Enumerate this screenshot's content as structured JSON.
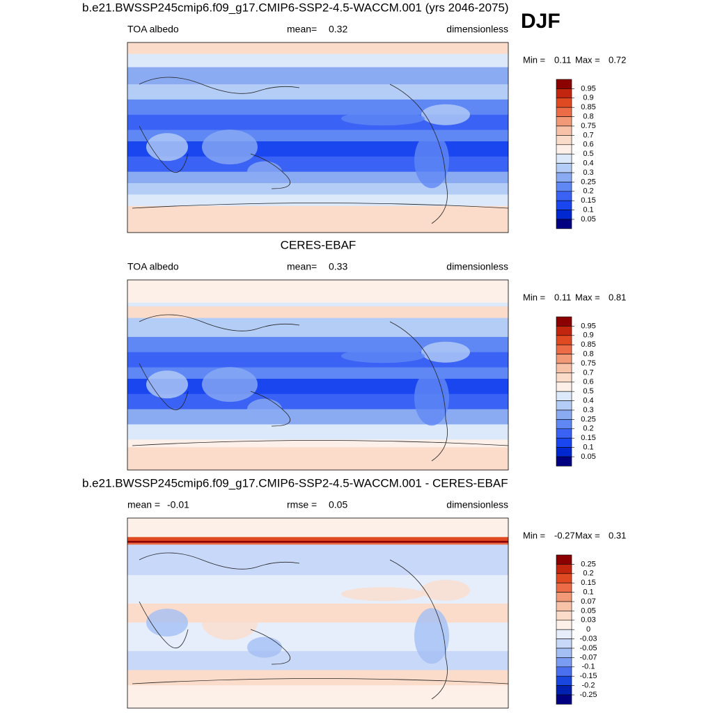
{
  "figure_title": "DJF",
  "panels": [
    {
      "title": "b.e21.BWSSP245cmip6.f09_g17.CMIP6-SSP2-4.5-WACCM.001 (yrs 2046-2075)",
      "variable": "TOA albedo",
      "stat1_label": "mean=",
      "stat1": 0.32,
      "units": "dimensionless",
      "min_label": "Min =",
      "min": 0.11,
      "max_label": "Max =",
      "max": 0.72,
      "levels": [
        0.95,
        0.9,
        0.85,
        0.8,
        0.75,
        0.7,
        0.6,
        0.5,
        0.4,
        0.3,
        0.25,
        0.2,
        0.15,
        0.1,
        0.05
      ],
      "colors": [
        "#8b0000",
        "#c3260e",
        "#e04a22",
        "#ec6c47",
        "#f29a78",
        "#f7c2a8",
        "#fbdcca",
        "#fdf0e8",
        "#dce9fb",
        "#b4cdf6",
        "#8aaaf2",
        "#6088f5",
        "#3a62f5",
        "#1a46f0",
        "#0028d0",
        "#000080"
      ]
    },
    {
      "title": "CERES-EBAF",
      "variable": "TOA albedo",
      "stat1_label": "mean=",
      "stat1": 0.33,
      "units": "dimensionless",
      "min_label": "Min =",
      "min": 0.11,
      "max_label": "Max =",
      "max": 0.81,
      "levels": [
        0.95,
        0.9,
        0.85,
        0.8,
        0.75,
        0.7,
        0.6,
        0.5,
        0.4,
        0.3,
        0.25,
        0.2,
        0.15,
        0.1,
        0.05
      ],
      "colors": [
        "#8b0000",
        "#c3260e",
        "#e04a22",
        "#ec6c47",
        "#f29a78",
        "#f7c2a8",
        "#fbdcca",
        "#fdf0e8",
        "#dce9fb",
        "#b4cdf6",
        "#8aaaf2",
        "#6088f5",
        "#3a62f5",
        "#1a46f0",
        "#0028d0",
        "#000080"
      ]
    },
    {
      "title": "b.e21.BWSSP245cmip6.f09_g17.CMIP6-SSP2-4.5-WACCM.001 - CERES-EBAF",
      "stat1_label": "mean =",
      "stat1": -0.01,
      "stat2_label": "rmse =",
      "stat2": 0.05,
      "units": "dimensionless",
      "min_label": "Min =",
      "min": -0.27,
      "max_label": "Max =",
      "max": 0.31,
      "levels": [
        0.25,
        0.2,
        0.15,
        0.1,
        0.07,
        0.05,
        0.03,
        0,
        -0.03,
        -0.05,
        -0.07,
        -0.1,
        -0.15,
        -0.2,
        -0.25
      ],
      "colors": [
        "#8b0000",
        "#c3260e",
        "#e04a22",
        "#ec6c47",
        "#f29a78",
        "#f7c2a8",
        "#fbdcca",
        "#fdf0e8",
        "#e6eefc",
        "#c8d8f8",
        "#a4bff4",
        "#7a9cf2",
        "#4a70f0",
        "#1a46e0",
        "#0020b0",
        "#000080"
      ]
    }
  ]
}
